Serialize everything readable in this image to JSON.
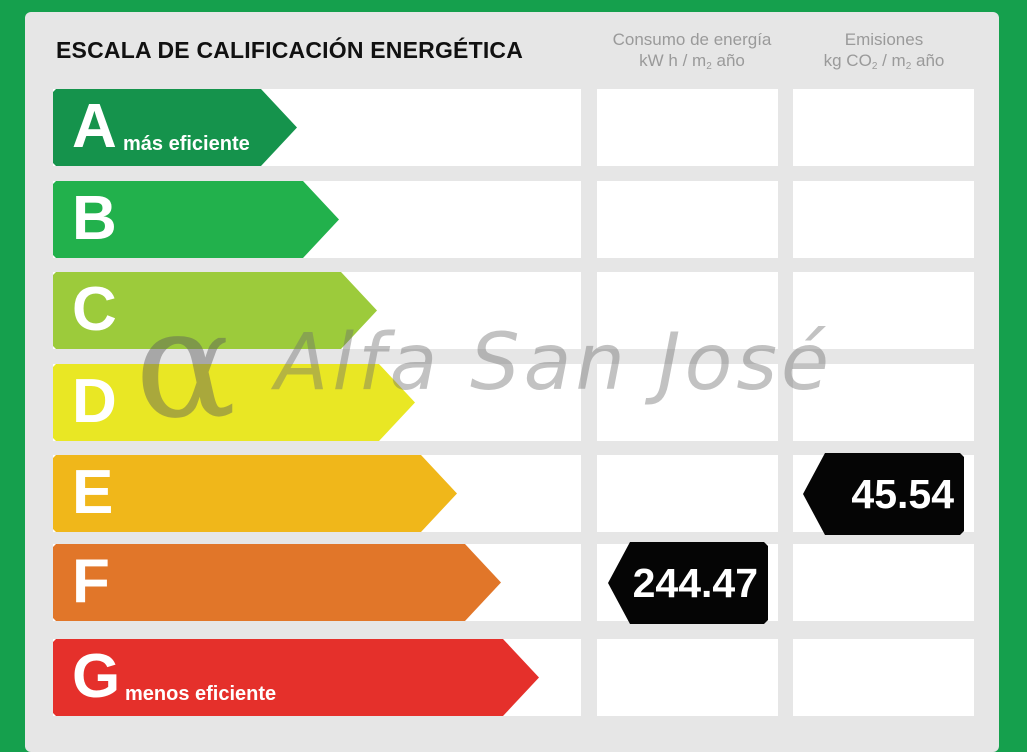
{
  "title": "ESCALA DE CALIFICACIÓN ENERGÉTICA",
  "columns": {
    "energy": {
      "line1": "Consumo de energía",
      "line2_pre": "kW h / m",
      "line2_sub": "2",
      "line2_post": " año"
    },
    "emissions": {
      "line1": "Emisiones",
      "line2_pre": "kg CO",
      "line2_sub": "2",
      "line2_mid": " / m",
      "line2_sub2": "2",
      "line2_post": " año"
    }
  },
  "ratings": [
    {
      "letter": "A",
      "label": "más eficiente",
      "color": "#15934c"
    },
    {
      "letter": "B",
      "label": "",
      "color": "#22b14c"
    },
    {
      "letter": "C",
      "label": "",
      "color": "#9ccb3b"
    },
    {
      "letter": "D",
      "label": "",
      "color": "#e9e724"
    },
    {
      "letter": "E",
      "label": "",
      "color": "#f0b71a"
    },
    {
      "letter": "F",
      "label": "",
      "color": "#e17629"
    },
    {
      "letter": "G",
      "label": "menos eficiente",
      "color": "#e5302b"
    }
  ],
  "energy_value": {
    "rating": "F",
    "value": "244.47"
  },
  "emissions_value": {
    "rating": "E",
    "value": "45.54"
  },
  "watermark": {
    "logo": "α",
    "text": "Alfa San José"
  }
}
